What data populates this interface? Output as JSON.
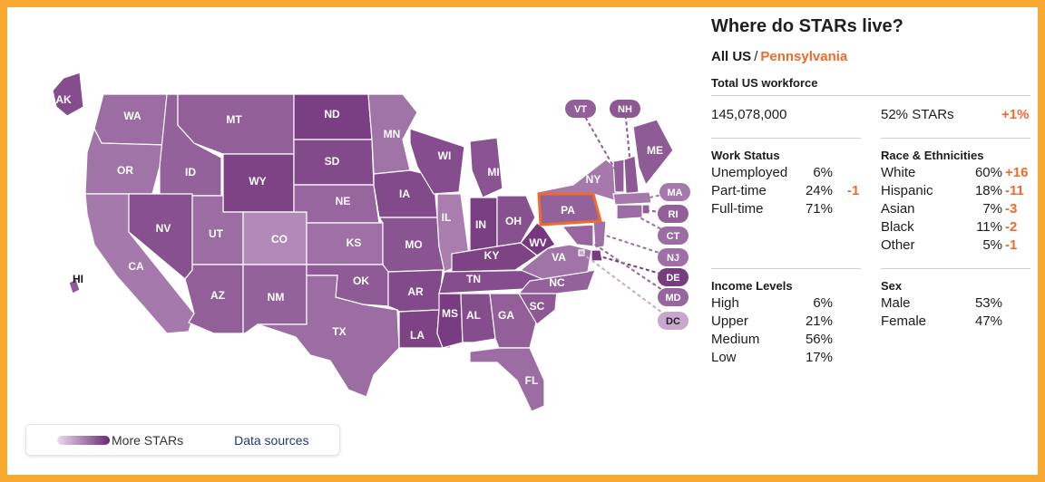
{
  "colors": {
    "border": "#f7a930",
    "highlight": "#f06a2a",
    "ramp_light": "#ecd9ef",
    "ramp_dark": "#6b2a74"
  },
  "legend": {
    "ramp_label": "More STARs",
    "sources_link": "Data sources"
  },
  "map": {
    "states": [
      {
        "abbr": "WA",
        "level": 0.62
      },
      {
        "abbr": "OR",
        "level": 0.58
      },
      {
        "abbr": "CA",
        "level": 0.55
      },
      {
        "abbr": "ID",
        "level": 0.68
      },
      {
        "abbr": "NV",
        "level": 0.78
      },
      {
        "abbr": "MT",
        "level": 0.7
      },
      {
        "abbr": "WY",
        "level": 0.86
      },
      {
        "abbr": "UT",
        "level": 0.62
      },
      {
        "abbr": "AZ",
        "level": 0.7
      },
      {
        "abbr": "CO",
        "level": 0.45
      },
      {
        "abbr": "NM",
        "level": 0.68
      },
      {
        "abbr": "ND",
        "level": 0.88
      },
      {
        "abbr": "SD",
        "level": 0.82
      },
      {
        "abbr": "NE",
        "level": 0.66
      },
      {
        "abbr": "KS",
        "level": 0.6
      },
      {
        "abbr": "OK",
        "level": 0.72
      },
      {
        "abbr": "TX",
        "level": 0.62
      },
      {
        "abbr": "MN",
        "level": 0.58
      },
      {
        "abbr": "IA",
        "level": 0.82
      },
      {
        "abbr": "MO",
        "level": 0.76
      },
      {
        "abbr": "AR",
        "level": 0.82
      },
      {
        "abbr": "LA",
        "level": 0.86
      },
      {
        "abbr": "WI",
        "level": 0.8
      },
      {
        "abbr": "IL",
        "level": 0.52
      },
      {
        "abbr": "MI",
        "level": 0.76
      },
      {
        "abbr": "IN",
        "level": 0.88
      },
      {
        "abbr": "OH",
        "level": 0.78
      },
      {
        "abbr": "KY",
        "level": 0.86
      },
      {
        "abbr": "TN",
        "level": 0.8
      },
      {
        "abbr": "MS",
        "level": 0.9
      },
      {
        "abbr": "AL",
        "level": 0.8
      },
      {
        "abbr": "GA",
        "level": 0.7
      },
      {
        "abbr": "FL",
        "level": 0.62
      },
      {
        "abbr": "SC",
        "level": 0.74
      },
      {
        "abbr": "NC",
        "level": 0.68
      },
      {
        "abbr": "VA",
        "level": 0.58
      },
      {
        "abbr": "WV",
        "level": 0.92
      },
      {
        "abbr": "PA",
        "level": 0.68
      },
      {
        "abbr": "NY",
        "level": 0.55
      },
      {
        "abbr": "ME",
        "level": 0.72
      },
      {
        "abbr": "AK",
        "level": 0.8
      },
      {
        "abbr": "HI",
        "level": 0.72
      },
      {
        "abbr": "VT",
        "level": 0.7
      },
      {
        "abbr": "NH",
        "level": 0.74
      },
      {
        "abbr": "MA",
        "level": 0.55
      },
      {
        "abbr": "RI",
        "level": 0.7
      },
      {
        "abbr": "CT",
        "level": 0.62
      },
      {
        "abbr": "NJ",
        "level": 0.6
      },
      {
        "abbr": "DE",
        "level": 0.9
      },
      {
        "abbr": "MD",
        "level": 0.66
      },
      {
        "abbr": "DC",
        "level": 0.28
      }
    ],
    "selected": "PA"
  },
  "panel": {
    "title": "Where do STARs live?",
    "crumb_root": "All US",
    "crumb_sep": "/",
    "crumb_current": "Pennsylvania",
    "workforce_title": "Total US workforce",
    "workforce_total": "145,078,000",
    "stars_share": "52% STARs",
    "stars_change": "+1%",
    "work_status": {
      "title": "Work Status",
      "rows": [
        {
          "label": "Unemployed",
          "pct": "6%",
          "change": ""
        },
        {
          "label": "Part-time",
          "pct": "24%",
          "change": "-1"
        },
        {
          "label": "Full-time",
          "pct": "71%",
          "change": ""
        }
      ]
    },
    "race": {
      "title": "Race & Ethnicities",
      "rows": [
        {
          "label": "White",
          "pct": "60%",
          "change": "+16"
        },
        {
          "label": "Hispanic",
          "pct": "18%",
          "change": "-11"
        },
        {
          "label": "Asian",
          "pct": "7%",
          "change": "-3"
        },
        {
          "label": "Black",
          "pct": "11%",
          "change": "-2"
        },
        {
          "label": "Other",
          "pct": "5%",
          "change": "-1"
        }
      ]
    },
    "income": {
      "title": "Income Levels",
      "rows": [
        {
          "label": "High",
          "pct": "6%"
        },
        {
          "label": "Upper",
          "pct": "21%"
        },
        {
          "label": "Medium",
          "pct": "56%"
        },
        {
          "label": "Low",
          "pct": "17%"
        }
      ]
    },
    "sex": {
      "title": "Sex",
      "rows": [
        {
          "label": "Male",
          "pct": "53%"
        },
        {
          "label": "Female",
          "pct": "47%"
        }
      ]
    }
  }
}
